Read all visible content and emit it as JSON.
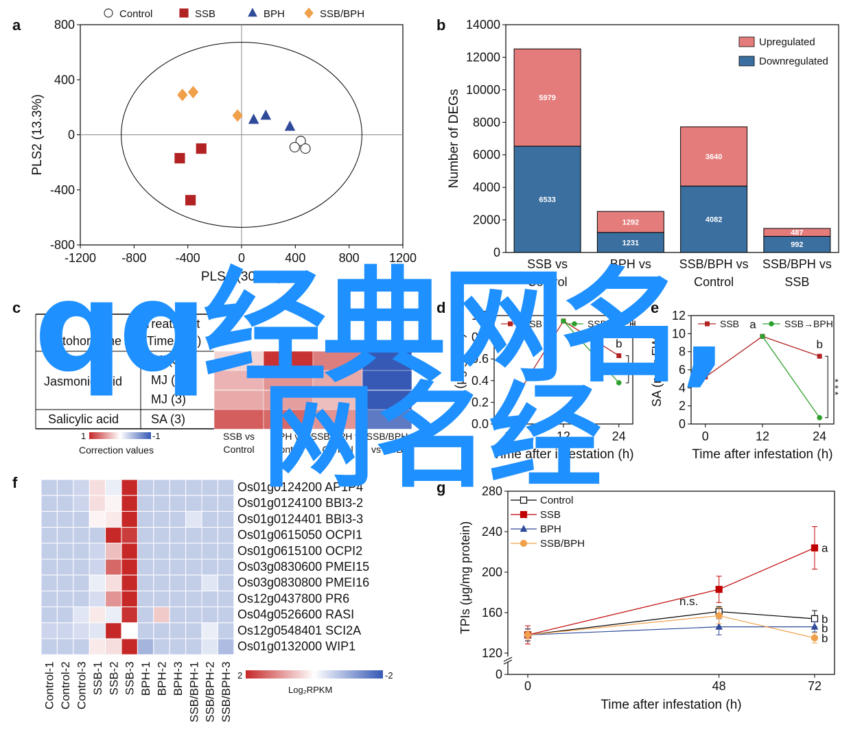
{
  "watermark": {
    "line1": "qq经典网名,",
    "line2": "网名经",
    "color": "#1e90ff"
  },
  "colors": {
    "control": "#ffffff",
    "ssb": "#b22222",
    "bph": "#2e4a99",
    "ssbbph": "#f0a04b",
    "up": "#e57c7c",
    "down": "#3a6fa0",
    "green": "#2ca02c",
    "grid": "#bbbbbb"
  },
  "panels": {
    "a": "a",
    "b": "b",
    "c": "c",
    "d": "d",
    "e": "e",
    "f": "f",
    "g": "g"
  },
  "panel_c": {
    "header_treatment": "Treatment",
    "header_time": "(Time in h)",
    "header_phyto": "Phytohormone",
    "group1": "Jasmonic acid",
    "group2": "Salicylic acid",
    "rows": [
      "JA (0.5)",
      "MJ (1)",
      "MJ (3)",
      "SA (3)"
    ],
    "cols": [
      "SSB vs|Control",
      "BPH vs|Control",
      "SSB/BPH vs|Control",
      "SSB/BPH|vs SSB"
    ],
    "legend_max": "1",
    "legend_min": "-1",
    "legend_title": "Correction values"
  },
  "panel_f": {
    "legend_max": "2",
    "legend_min": "-2",
    "legend_title": "Log₂RPKM"
  },
  "chart_data": [
    {
      "panel": "a",
      "type": "scatter",
      "title": "",
      "xlabel": "PLS1 (30.5%)",
      "ylabel": "PLS2 (13.3%)",
      "xlim": [
        -1200,
        1200
      ],
      "ylim": [
        -800,
        800
      ],
      "xticks": [
        -1200,
        -800,
        -400,
        0,
        400,
        800,
        1200
      ],
      "yticks": [
        800,
        400,
        0,
        -400,
        -800
      ],
      "legend": "top",
      "series": [
        {
          "name": "Control",
          "marker": "circle",
          "points": [
            [
              440,
              -45
            ],
            [
              395,
              -90
            ],
            [
              475,
              -100
            ]
          ]
        },
        {
          "name": "SSB",
          "marker": "square",
          "points": [
            [
              -300,
              -100
            ],
            [
              -460,
              -170
            ],
            [
              -380,
              -475
            ]
          ]
        },
        {
          "name": "BPH",
          "marker": "triangle",
          "points": [
            [
              90,
              110
            ],
            [
              180,
              140
            ],
            [
              360,
              60
            ]
          ]
        },
        {
          "name": "SSB/BPH",
          "marker": "diamond",
          "points": [
            [
              -440,
              290
            ],
            [
              -360,
              310
            ],
            [
              -30,
              140
            ]
          ]
        }
      ]
    },
    {
      "panel": "b",
      "type": "bar",
      "title": "",
      "xlabel": "",
      "ylabel": "Number of DEGs",
      "ylim": [
        0,
        14000
      ],
      "yticks": [
        0,
        2000,
        4000,
        6000,
        8000,
        10000,
        12000,
        14000
      ],
      "categories": [
        "SSB vs|Control",
        "BPH vs|Control",
        "SSB/BPH vs|Control",
        "SSB/BPH vs|SSB"
      ],
      "legend": "top-right",
      "series": [
        {
          "name": "Downregulated",
          "values": [
            6533,
            1231,
            4082,
            992
          ]
        },
        {
          "name": "Upregulated",
          "values": [
            5979,
            1292,
            3640,
            487
          ]
        }
      ]
    },
    {
      "panel": "c",
      "type": "heatmap",
      "rows": [
        "JA (0.5)",
        "MJ (1)",
        "MJ (3)",
        "SA (3)"
      ],
      "columns": [
        "SSB vs Control",
        "BPH vs Control",
        "SSB/BPH vs Control",
        "SSB/BPH vs SSB"
      ],
      "values": [
        [
          0.2,
          0.95,
          0.6,
          -1
        ],
        [
          0.35,
          0.5,
          0.4,
          -1
        ],
        [
          0.4,
          0.45,
          0.3,
          -1
        ],
        [
          0.75,
          0.7,
          0.5,
          -0.8
        ]
      ],
      "range": [
        -1,
        1
      ]
    },
    {
      "panel": "d",
      "type": "line",
      "xlabel": "Time after infestation (h)",
      "ylabel": "JA (μg/g FW)",
      "xlim": [
        -3,
        27
      ],
      "ylim": [
        0.0,
        1.0
      ],
      "xticks": [
        0,
        12,
        24
      ],
      "yticks": [
        0.0,
        0.2,
        0.4,
        0.6,
        0.8,
        1.0
      ],
      "legend": "top",
      "series": [
        {
          "name": "SSB",
          "x": [
            0,
            12,
            24
          ],
          "y": [
            0.13,
            0.95,
            0.63
          ],
          "labels": [
            "",
            "",
            "b"
          ]
        },
        {
          "name": "SSB→BPH",
          "x": [
            12,
            24
          ],
          "y": [
            0.95,
            0.38
          ],
          "labels": [
            "",
            ""
          ]
        }
      ],
      "annotation": "*"
    },
    {
      "panel": "e",
      "type": "line",
      "xlabel": "Time after infestation (h)",
      "ylabel": "SA (ng/g FW)",
      "xlim": [
        -3,
        27
      ],
      "ylim": [
        0,
        12
      ],
      "xticks": [
        0,
        12,
        24
      ],
      "yticks": [
        0,
        2,
        4,
        6,
        8,
        10,
        12
      ],
      "legend": "top",
      "series": [
        {
          "name": "SSB",
          "x": [
            0,
            12,
            24
          ],
          "y": [
            5.2,
            9.7,
            7.5
          ],
          "labels": [
            "c",
            "a",
            "b"
          ]
        },
        {
          "name": "SSB→BPH",
          "x": [
            12,
            24
          ],
          "y": [
            9.7,
            0.7
          ],
          "labels": [
            "",
            ""
          ]
        }
      ],
      "annotation": "***"
    },
    {
      "panel": "f",
      "type": "heatmap",
      "columns": [
        "Control-1",
        "Control-2",
        "Control-3",
        "SSB-1",
        "SSB-2",
        "SSB-3",
        "BPH-1",
        "BPH-2",
        "BPH-3",
        "SSB/BPH-1",
        "SSB/BPH-2",
        "SSB/BPH-3"
      ],
      "rows": [
        "Os01g0124200 AP1P4",
        "Os01g0124100 BBI3-2",
        "Os01g0124401 BBI3-3",
        "Os01g0615050 OCPI1",
        "Os01g0615100 OCPI2",
        "Os03g0830600 PMEI15",
        "Os03g0830800 PMEI16",
        "Os12g0437800 PR6",
        "Os04g0526600 RASI",
        "Os12g0548401 SCI2A",
        "Os01g0132000 WIP1"
      ],
      "values": [
        [
          -0.6,
          -0.6,
          -0.5,
          0.3,
          -0.2,
          2,
          -0.6,
          -0.6,
          -0.6,
          -0.6,
          -0.6,
          -0.6
        ],
        [
          -0.6,
          -0.6,
          -0.5,
          0.3,
          0.1,
          2,
          -0.6,
          -0.6,
          -0.6,
          -0.6,
          -0.6,
          -0.6
        ],
        [
          -0.6,
          -0.6,
          -0.6,
          0.1,
          0.2,
          2,
          -0.6,
          -0.6,
          -0.6,
          -0.3,
          -0.6,
          -0.6
        ],
        [
          -0.6,
          -0.6,
          -0.6,
          -0.6,
          2,
          1.8,
          -0.6,
          -0.6,
          -0.6,
          -0.6,
          -0.6,
          -0.6
        ],
        [
          -0.6,
          -0.6,
          -0.6,
          -0.5,
          0.6,
          2,
          -0.6,
          -0.6,
          -0.6,
          -0.6,
          -0.6,
          -0.6
        ],
        [
          -0.6,
          -0.6,
          -0.6,
          -0.5,
          1.4,
          2,
          -0.6,
          -0.6,
          -0.6,
          -0.6,
          -0.6,
          -0.6
        ],
        [
          -0.6,
          -0.6,
          -0.6,
          -0.2,
          0.3,
          2,
          -0.6,
          -0.6,
          -0.6,
          -0.6,
          -0.3,
          -0.6
        ],
        [
          -0.6,
          -0.6,
          -0.6,
          -0.4,
          1.0,
          2,
          -0.6,
          -0.6,
          -0.6,
          -0.6,
          -0.6,
          -0.6
        ],
        [
          -0.6,
          -0.6,
          -0.3,
          0.2,
          -0.2,
          1.9,
          -0.6,
          0.5,
          -0.6,
          -0.6,
          -0.6,
          -0.6
        ],
        [
          -0.5,
          -0.5,
          -0.4,
          -0.3,
          2,
          0,
          -0.6,
          -0.6,
          -0.6,
          -0.6,
          -0.2,
          -0.6
        ],
        [
          -0.6,
          -0.6,
          -0.6,
          0.2,
          0.3,
          2,
          -0.9,
          -0.6,
          -0.6,
          -0.6,
          -0.3,
          -0.8
        ]
      ],
      "range": [
        -2,
        2
      ]
    },
    {
      "panel": "g",
      "type": "line",
      "xlabel": "Time after infestation (h)",
      "ylabel": "TPIs (μg/mg protein)",
      "xlim": [
        -5,
        77
      ],
      "ylim": [
        120,
        280
      ],
      "axis_break": true,
      "xticks": [
        0,
        48,
        72
      ],
      "yticks": [
        120,
        160,
        200,
        240,
        280
      ],
      "y_zero_label": "0",
      "legend": "top-left",
      "series": [
        {
          "name": "Control",
          "marker": "open-square",
          "x": [
            0,
            48,
            72
          ],
          "y": [
            138,
            161,
            154
          ],
          "err": [
            6,
            5,
            8
          ],
          "label": "b"
        },
        {
          "name": "SSB",
          "marker": "square",
          "x": [
            0,
            48,
            72
          ],
          "y": [
            138,
            183,
            224
          ],
          "err": [
            9,
            13,
            21
          ],
          "label": "a"
        },
        {
          "name": "BPH",
          "marker": "triangle",
          "x": [
            0,
            48,
            72
          ],
          "y": [
            138,
            146,
            146
          ],
          "err": [
            6,
            8,
            5
          ],
          "label": "b"
        },
        {
          "name": "SSB/BPH",
          "marker": "circle",
          "x": [
            0,
            48,
            72
          ],
          "y": [
            138,
            157,
            135
          ],
          "err": [
            5,
            8,
            5
          ],
          "label": "b"
        }
      ],
      "annotation": "n.s."
    }
  ]
}
